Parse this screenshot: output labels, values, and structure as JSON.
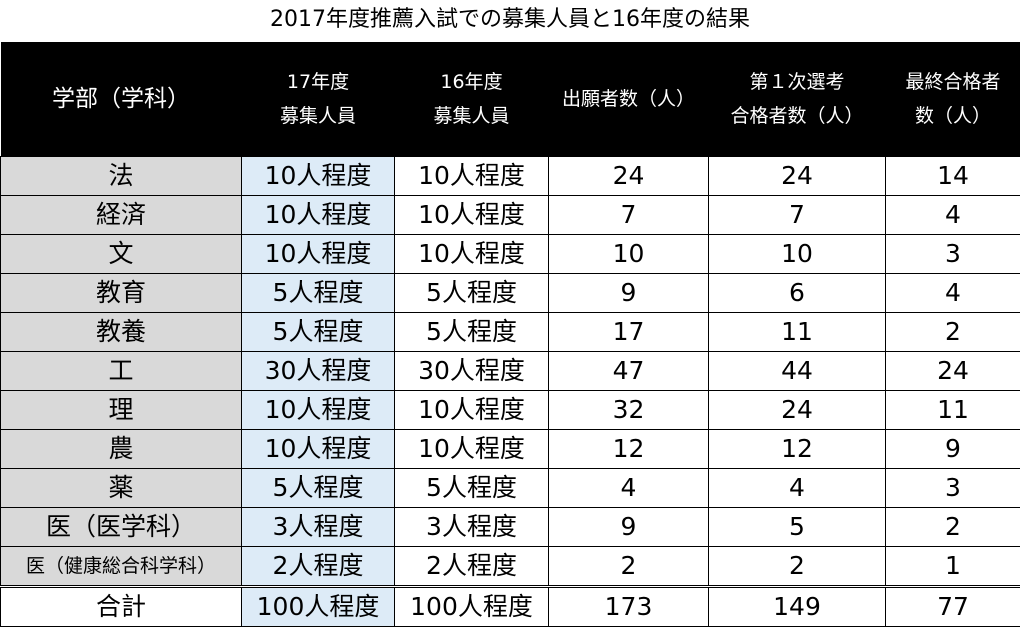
{
  "title": "2017年度推薦入試での募集人員と16年度の結果",
  "header": {
    "dept": "学部（学科）",
    "c1": [
      "17年度",
      "募集人員"
    ],
    "c2": [
      "16年度",
      "募集人員"
    ],
    "c3": "出願者数（人）",
    "c4": [
      "第１次選考",
      "合格者数（人）"
    ],
    "c5": [
      "最終合格者",
      "数（人）"
    ]
  },
  "rows": [
    {
      "dept": "法",
      "q17": "10人程度",
      "q16": "10人程度",
      "applicants": "24",
      "first_pass": "24",
      "final_pass": "14"
    },
    {
      "dept": "経済",
      "q17": "10人程度",
      "q16": "10人程度",
      "applicants": "7",
      "first_pass": "7",
      "final_pass": "4"
    },
    {
      "dept": "文",
      "q17": "10人程度",
      "q16": "10人程度",
      "applicants": "10",
      "first_pass": "10",
      "final_pass": "3"
    },
    {
      "dept": "教育",
      "q17": "5人程度",
      "q16": "5人程度",
      "applicants": "9",
      "first_pass": "6",
      "final_pass": "4"
    },
    {
      "dept": "教養",
      "q17": "5人程度",
      "q16": "5人程度",
      "applicants": "17",
      "first_pass": "11",
      "final_pass": "2"
    },
    {
      "dept": "工",
      "q17": "30人程度",
      "q16": "30人程度",
      "applicants": "47",
      "first_pass": "44",
      "final_pass": "24"
    },
    {
      "dept": "理",
      "q17": "10人程度",
      "q16": "10人程度",
      "applicants": "32",
      "first_pass": "24",
      "final_pass": "11"
    },
    {
      "dept": "農",
      "q17": "10人程度",
      "q16": "10人程度",
      "applicants": "12",
      "first_pass": "12",
      "final_pass": "9"
    },
    {
      "dept": "薬",
      "q17": "5人程度",
      "q16": "5人程度",
      "applicants": "4",
      "first_pass": "4",
      "final_pass": "3"
    },
    {
      "dept": "医（医学科）",
      "q17": "3人程度",
      "q16": "3人程度",
      "applicants": "9",
      "first_pass": "5",
      "final_pass": "2"
    },
    {
      "dept": "医（健康総合科学科）",
      "q17": "2人程度",
      "q16": "2人程度",
      "applicants": "2",
      "first_pass": "2",
      "final_pass": "1"
    }
  ],
  "total": {
    "dept": "合計",
    "q17": "100人程度",
    "q16": "100人程度",
    "applicants": "173",
    "first_pass": "149",
    "final_pass": "77"
  },
  "colors": {
    "header_bg": "#000000",
    "dept_bg": "#d9d9d9",
    "q17_bg": "#ddebf7"
  }
}
